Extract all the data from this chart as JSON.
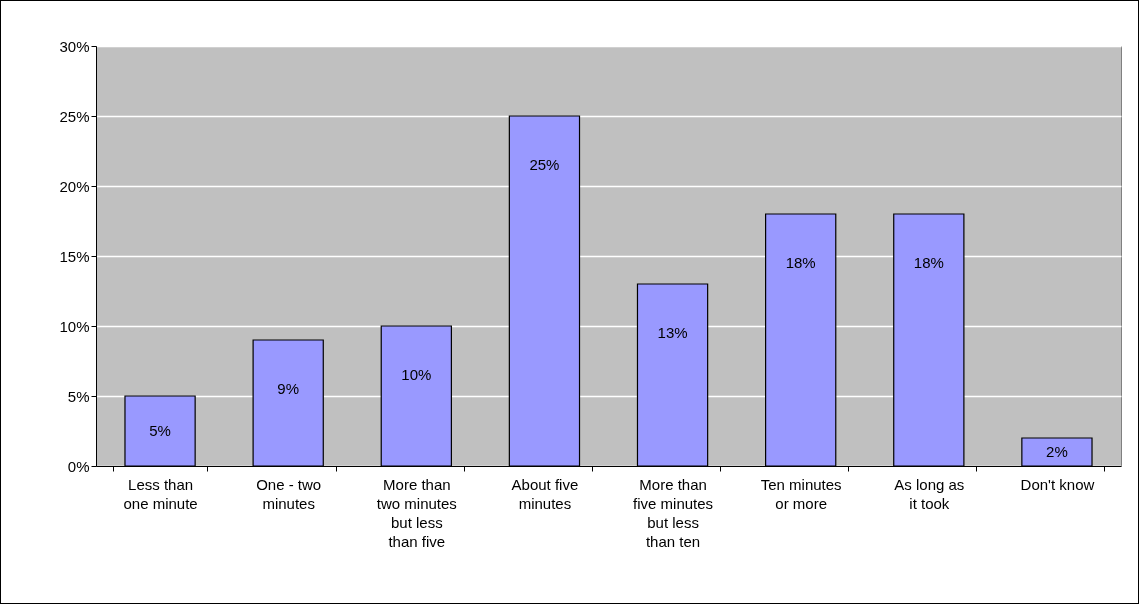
{
  "chart_data": {
    "type": "bar",
    "categories": [
      "Less than one minute",
      "One - two minutes",
      "More than two minutes but less than five",
      "About five minutes",
      "More than five minutes but less than ten",
      "Ten minutes or more",
      "As long as it took",
      "Don't know"
    ],
    "values": [
      5,
      9,
      10,
      25,
      13,
      18,
      18,
      2
    ],
    "value_labels": [
      "5%",
      "9%",
      "10%",
      "25%",
      "13%",
      "18%",
      "18%",
      "2%"
    ],
    "color": "#9999ff",
    "ylim": [
      0,
      30
    ],
    "yticks": [
      {
        "value": 0,
        "label": "0%"
      },
      {
        "value": 5,
        "label": "5%"
      },
      {
        "value": 10,
        "label": "10%"
      },
      {
        "value": 15,
        "label": "15%"
      },
      {
        "value": 20,
        "label": "20%"
      },
      {
        "value": 25,
        "label": "25%"
      },
      {
        "value": 30,
        "label": "30%"
      }
    ],
    "grid": "y"
  }
}
